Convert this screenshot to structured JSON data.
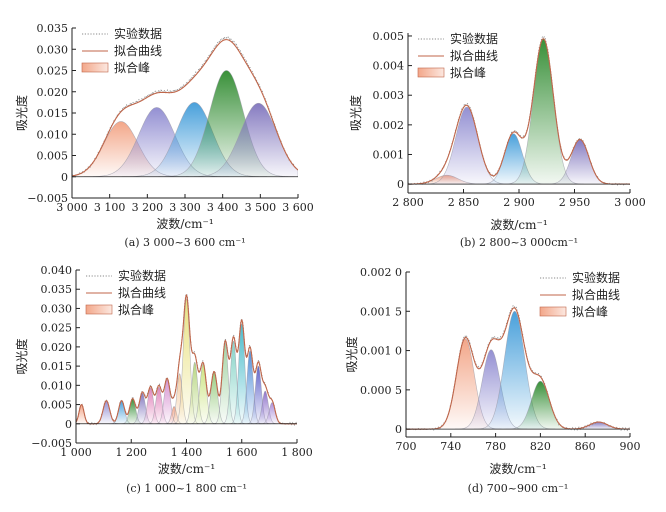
{
  "legend_labels": {
    "experimental": "实验数据",
    "fit_curve": "拟合曲线",
    "fit_peak": "拟合峰"
  },
  "colors": {
    "experimental": "#8a8a8a",
    "fit_curve": "#c0664a",
    "axis": "#222222",
    "peak_outline": "#9a9aa6"
  },
  "chart_data": [
    {
      "type": "line",
      "panel_label": "(a) 3 000~3 600 cm⁻¹",
      "title": "",
      "xlabel": "波数/cm⁻¹",
      "ylabel": "吸光度",
      "xlim": [
        3000,
        3600
      ],
      "ylim": [
        -0.005,
        0.035
      ],
      "xticks": [
        3000,
        3100,
        3200,
        3300,
        3400,
        3500,
        3600
      ],
      "xtick_labels": [
        "3 000",
        "3 100",
        "3 200",
        "3 300",
        "3 400",
        "3 500",
        "3 600"
      ],
      "yticks": [
        -0.005,
        0,
        0.005,
        0.01,
        0.015,
        0.02,
        0.025,
        0.03,
        0.035
      ],
      "ytick_labels": [
        "−0.005",
        "0",
        "0.005",
        "0.010",
        "0.015",
        "0.020",
        "0.025",
        "0.030",
        "0.035"
      ],
      "legend_position": "top-left",
      "peaks": [
        {
          "center": 3130,
          "height": 0.013,
          "width": 45,
          "color": "#f2a283"
        },
        {
          "center": 3225,
          "height": 0.0163,
          "width": 48,
          "color": "#8e8ad0"
        },
        {
          "center": 3325,
          "height": 0.0175,
          "width": 48,
          "color": "#3f9bd9"
        },
        {
          "center": 3410,
          "height": 0.025,
          "width": 45,
          "color": "#2e8a2e"
        },
        {
          "center": 3495,
          "height": 0.0173,
          "width": 48,
          "color": "#7f74bd"
        }
      ]
    },
    {
      "type": "line",
      "panel_label": "(b) 2 800~3 000cm⁻¹",
      "title": "",
      "xlabel": "波数/cm⁻¹",
      "ylabel": "吸光度",
      "xlim": [
        2800,
        3000
      ],
      "ylim": [
        -0.0003,
        0.0051
      ],
      "xticks": [
        2800,
        2850,
        2900,
        2950,
        3000
      ],
      "xtick_labels": [
        "2 800",
        "2 850",
        "2 900",
        "2 950",
        "3 000"
      ],
      "yticks": [
        0,
        0.001,
        0.002,
        0.003,
        0.004,
        0.005
      ],
      "ytick_labels": [
        "0",
        "0.001",
        "0.002",
        "0.003",
        "0.004",
        "0.005"
      ],
      "legend_position": "top-left",
      "peaks": [
        {
          "center": 2835,
          "height": 0.0003,
          "width": 10,
          "color": "#f2a283"
        },
        {
          "center": 2853,
          "height": 0.0026,
          "width": 10,
          "color": "#8e8ad0"
        },
        {
          "center": 2895,
          "height": 0.0017,
          "width": 8,
          "color": "#3f9bd9"
        },
        {
          "center": 2922,
          "height": 0.0049,
          "width": 9,
          "color": "#2e8a2e"
        },
        {
          "center": 2955,
          "height": 0.0015,
          "width": 8,
          "color": "#7f74bd"
        }
      ]
    },
    {
      "type": "line",
      "panel_label": "(c) 1 000~1 800 cm⁻¹",
      "title": "",
      "xlabel": "波数/cm⁻¹",
      "ylabel": "吸光度",
      "xlim": [
        1000,
        1800
      ],
      "ylim": [
        -0.005,
        0.04
      ],
      "xticks": [
        1000,
        1200,
        1400,
        1600,
        1800
      ],
      "xtick_labels": [
        "1 000",
        "1 200",
        "1 400",
        "1 600",
        "1 800"
      ],
      "yticks": [
        -0.005,
        0,
        0.005,
        0.01,
        0.015,
        0.02,
        0.025,
        0.03,
        0.035,
        0.04
      ],
      "ytick_labels": [
        "−0.005",
        "0",
        "0.005",
        "0.010",
        "0.015",
        "0.020",
        "0.025",
        "0.030",
        "0.035",
        "0.040"
      ],
      "legend_position": "top-left",
      "peaks": [
        {
          "center": 1020,
          "height": 0.005,
          "width": 9,
          "color": "#f2a283"
        },
        {
          "center": 1110,
          "height": 0.006,
          "width": 12,
          "color": "#8e8ad0"
        },
        {
          "center": 1165,
          "height": 0.006,
          "width": 11,
          "color": "#3f9bd9"
        },
        {
          "center": 1205,
          "height": 0.0065,
          "width": 11,
          "color": "#2e8a2e"
        },
        {
          "center": 1240,
          "height": 0.008,
          "width": 11,
          "color": "#7f74bd"
        },
        {
          "center": 1270,
          "height": 0.0093,
          "width": 11,
          "color": "#e07fb8"
        },
        {
          "center": 1300,
          "height": 0.0095,
          "width": 11,
          "color": "#e07fb8"
        },
        {
          "center": 1330,
          "height": 0.0115,
          "width": 11,
          "color": "#d68fcf"
        },
        {
          "center": 1355,
          "height": 0.0045,
          "width": 9,
          "color": "#f2a283"
        },
        {
          "center": 1375,
          "height": 0.013,
          "width": 10,
          "color": "#f3c79a"
        },
        {
          "center": 1400,
          "height": 0.0325,
          "width": 12,
          "color": "#e8e07a"
        },
        {
          "center": 1430,
          "height": 0.016,
          "width": 11,
          "color": "#b4d47a"
        },
        {
          "center": 1460,
          "height": 0.0155,
          "width": 12,
          "color": "#c9e27a"
        },
        {
          "center": 1500,
          "height": 0.0135,
          "width": 12,
          "color": "#93c97a"
        },
        {
          "center": 1540,
          "height": 0.021,
          "width": 11,
          "color": "#9fd19f"
        },
        {
          "center": 1570,
          "height": 0.0215,
          "width": 11,
          "color": "#7fd1c4"
        },
        {
          "center": 1600,
          "height": 0.026,
          "width": 11,
          "color": "#3fb8c8"
        },
        {
          "center": 1630,
          "height": 0.019,
          "width": 11,
          "color": "#4a8ad6"
        },
        {
          "center": 1660,
          "height": 0.015,
          "width": 11,
          "color": "#5a5ec8"
        },
        {
          "center": 1685,
          "height": 0.0085,
          "width": 11,
          "color": "#8a6cc8"
        },
        {
          "center": 1710,
          "height": 0.0055,
          "width": 11,
          "color": "#a88ad8"
        }
      ]
    },
    {
      "type": "line",
      "panel_label": "(d) 700~900 cm⁻¹",
      "title": "",
      "xlabel": "波数/cm⁻¹",
      "ylabel": "吸光度",
      "xlim": [
        700,
        900
      ],
      "ylim": [
        -0.0001,
        0.002
      ],
      "xticks": [
        700,
        740,
        780,
        820,
        860,
        900
      ],
      "xtick_labels": [
        "700",
        "740",
        "780",
        "820",
        "860",
        "900"
      ],
      "yticks": [
        0,
        0.0005,
        0.001,
        0.0015,
        0.002
      ],
      "ytick_labels": [
        "0",
        "0.000 5",
        "0.001 0",
        "0.001 5",
        "0.002 0"
      ],
      "legend_position": "top-right",
      "peaks": [
        {
          "center": 753,
          "height": 0.00115,
          "width": 8,
          "color": "#f2a283"
        },
        {
          "center": 776,
          "height": 0.00101,
          "width": 8,
          "color": "#8e8ad0"
        },
        {
          "center": 797,
          "height": 0.0015,
          "width": 9,
          "color": "#3f9bd9"
        },
        {
          "center": 820,
          "height": 0.00061,
          "width": 8,
          "color": "#2e8a2e"
        },
        {
          "center": 872,
          "height": 9e-05,
          "width": 8,
          "color": "#7f74bd"
        }
      ]
    }
  ]
}
